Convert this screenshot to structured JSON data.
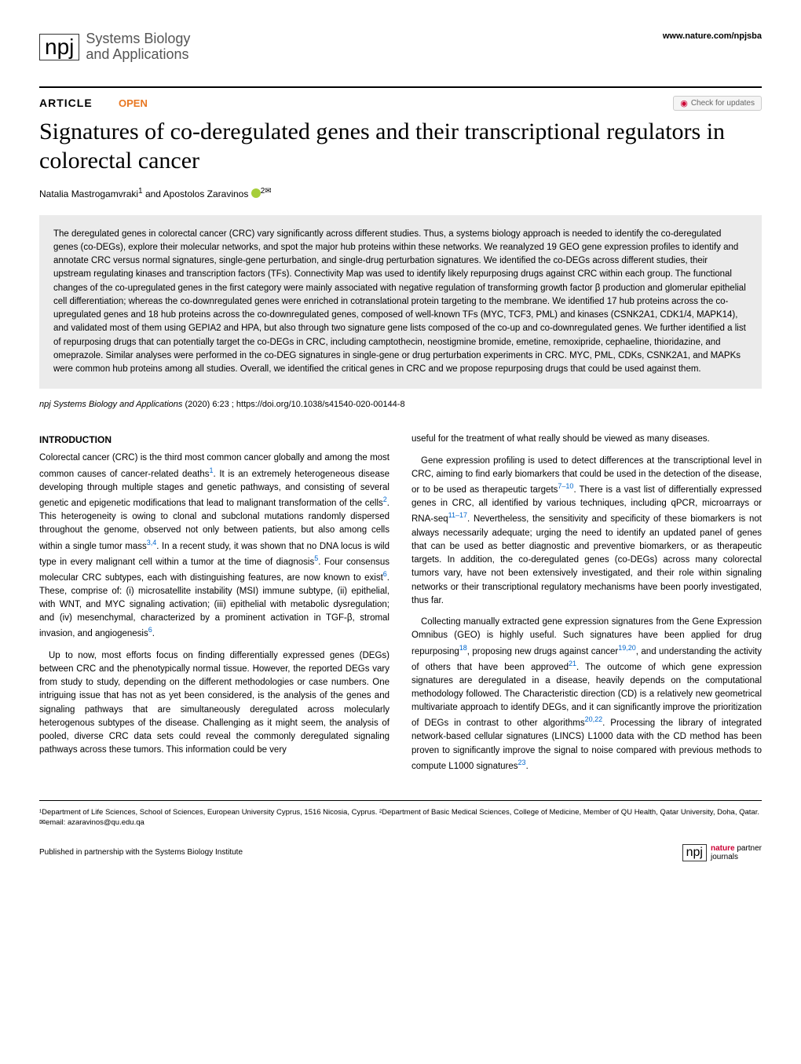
{
  "header": {
    "journal_prefix": "npj",
    "journal_name_line1": "Systems Biology",
    "journal_name_line2": "and Applications",
    "site_url": "www.nature.com/npjsba"
  },
  "article_meta": {
    "article_label": "ARTICLE",
    "open_label": "OPEN",
    "check_updates": "Check for updates"
  },
  "title": "Signatures of co-deregulated genes and their transcriptional regulators in colorectal cancer",
  "authors": {
    "line": "Natalia Mastrogamvraki",
    "sup1": "1",
    "and": " and Apostolos Zaravinos",
    "sup2": "2",
    "corr": "✉"
  },
  "abstract": "The deregulated genes in colorectal cancer (CRC) vary significantly across different studies. Thus, a systems biology approach is needed to identify the co-deregulated genes (co-DEGs), explore their molecular networks, and spot the major hub proteins within these networks. We reanalyzed 19 GEO gene expression profiles to identify and annotate CRC versus normal signatures, single-gene perturbation, and single-drug perturbation signatures. We identified the co-DEGs across different studies, their upstream regulating kinases and transcription factors (TFs). Connectivity Map was used to identify likely repurposing drugs against CRC within each group. The functional changes of the co-upregulated genes in the first category were mainly associated with negative regulation of transforming growth factor β production and glomerular epithelial cell differentiation; whereas the co-downregulated genes were enriched in cotranslational protein targeting to the membrane. We identified 17 hub proteins across the co-upregulated genes and 18 hub proteins across the co-downregulated genes, composed of well-known TFs (MYC, TCF3, PML) and kinases (CSNK2A1, CDK1/4, MAPK14), and validated most of them using GEPIA2 and HPA, but also through two signature gene lists composed of the co-up and co-downregulated genes. We further identified a list of repurposing drugs that can potentially target the co-DEGs in CRC, including camptothecin, neostigmine bromide, emetine, remoxipride, cephaeline, thioridazine, and omeprazole. Similar analyses were performed in the co-DEG signatures in single-gene or drug perturbation experiments in CRC. MYC, PML, CDKs, CSNK2A1, and MAPKs were common hub proteins among all studies. Overall, we identified the critical genes in CRC and we propose repurposing drugs that could be used against them.",
  "citation": {
    "journal": "npj Systems Biology and Applications",
    "info": "           (2020) 6:23 ; https://doi.org/10.1038/s41540-020-00144-8"
  },
  "intro_head": "INTRODUCTION",
  "col1": {
    "p1a": "Colorectal cancer (CRC) is the third most common cancer globally and among the most common causes of cancer-related deaths",
    "p1b": ". It is an extremely heterogeneous disease developing through multiple stages and genetic pathways, and consisting of several genetic and epigenetic modifications that lead to malignant transformation of the cells",
    "p1c": ". This heterogeneity is owing to clonal and subclonal mutations randomly dispersed throughout the genome, observed not only between patients, but also among cells within a single tumor mass",
    "p1d": ". In a recent study, it was shown that no DNA locus is wild type in every malignant cell within a tumor at the time of diagnosis",
    "p1e": ". Four consensus molecular CRC subtypes, each with distinguishing features, are now known to exist",
    "p1f": ". These, comprise of: (i) microsatellite instability (MSI) immune subtype, (ii) epithelial, with WNT, and MYC signaling activation; (iii) epithelial with metabolic dysregulation; and (iv) mesenchymal, characterized by a prominent activation in TGF-β, stromal invasion, and angiogenesis",
    "p1g": ".",
    "p2": "Up to now, most efforts focus on finding differentially expressed genes (DEGs) between CRC and the phenotypically normal tissue. However, the reported DEGs vary from study to study, depending on the different methodologies or case numbers. One intriguing issue that has not as yet been considered, is the analysis of the genes and signaling pathways that are simultaneously deregulated across molecularly heterogenous subtypes of the disease. Challenging as it might seem, the analysis of pooled, diverse CRC data sets could reveal the commonly deregulated signaling pathways across these tumors. This information could be very"
  },
  "col2": {
    "p1": "useful for the treatment of what really should be viewed as many diseases.",
    "p2a": "Gene expression profiling is used to detect differences at the transcriptional level in CRC, aiming to find early biomarkers that could be used in the detection of the disease, or to be used as therapeutic targets",
    "p2b": ". There is a vast list of differentially expressed genes in CRC, all identified by various techniques, including qPCR, microarrays or RNA-seq",
    "p2c": ". Nevertheless, the sensitivity and specificity of these biomarkers is not always necessarily adequate; urging the need to identify an updated panel of genes that can be used as better diagnostic and preventive biomarkers, or as therapeutic targets. In addition, the co-deregulated genes (co-DEGs) across many colorectal tumors vary, have not been extensively investigated, and their role within signaling networks or their transcriptional regulatory mechanisms have been poorly investigated, thus far.",
    "p3a": "Collecting manually extracted gene expression signatures from the Gene Expression Omnibus (GEO) is highly useful. Such signatures have been applied for drug repurposing",
    "p3b": ", proposing new drugs against cancer",
    "p3c": ", and understanding the activity of others that have been approved",
    "p3d": ". The outcome of which gene expression signatures are deregulated in a disease, heavily depends on the computational methodology followed. The Characteristic direction (CD) is a relatively new geometrical multivariate approach to identify DEGs, and it can significantly improve the prioritization of DEGs in contrast to other algorithms",
    "p3e": ". Processing the library of integrated network-based cellular signatures (LINCS) L1000 data with the CD method has been proven to significantly improve the signal to noise compared with previous methods to compute L1000 signatures",
    "p3f": "."
  },
  "refs": {
    "r1": "1",
    "r2": "2",
    "r34": "3,4",
    "r5": "5",
    "r6": "6",
    "r6b": "6",
    "r710": "7–10",
    "r1117": "11–17",
    "r18": "18",
    "r1920": "19,20",
    "r21": "21",
    "r2022": "20,22",
    "r23": "23"
  },
  "affiliations": "¹Department of Life Sciences, School of Sciences, European University Cyprus, 1516 Nicosia, Cyprus. ²Department of Basic Medical Sciences, College of Medicine, Member of QU Health, Qatar University, Doha, Qatar. ✉email: azaravinos@qu.edu.qa",
  "footer": {
    "left": "Published in partnership with the Systems Biology Institute",
    "npj": "npj",
    "nature": "nature",
    "partner": "partner",
    "journals": "journals"
  }
}
